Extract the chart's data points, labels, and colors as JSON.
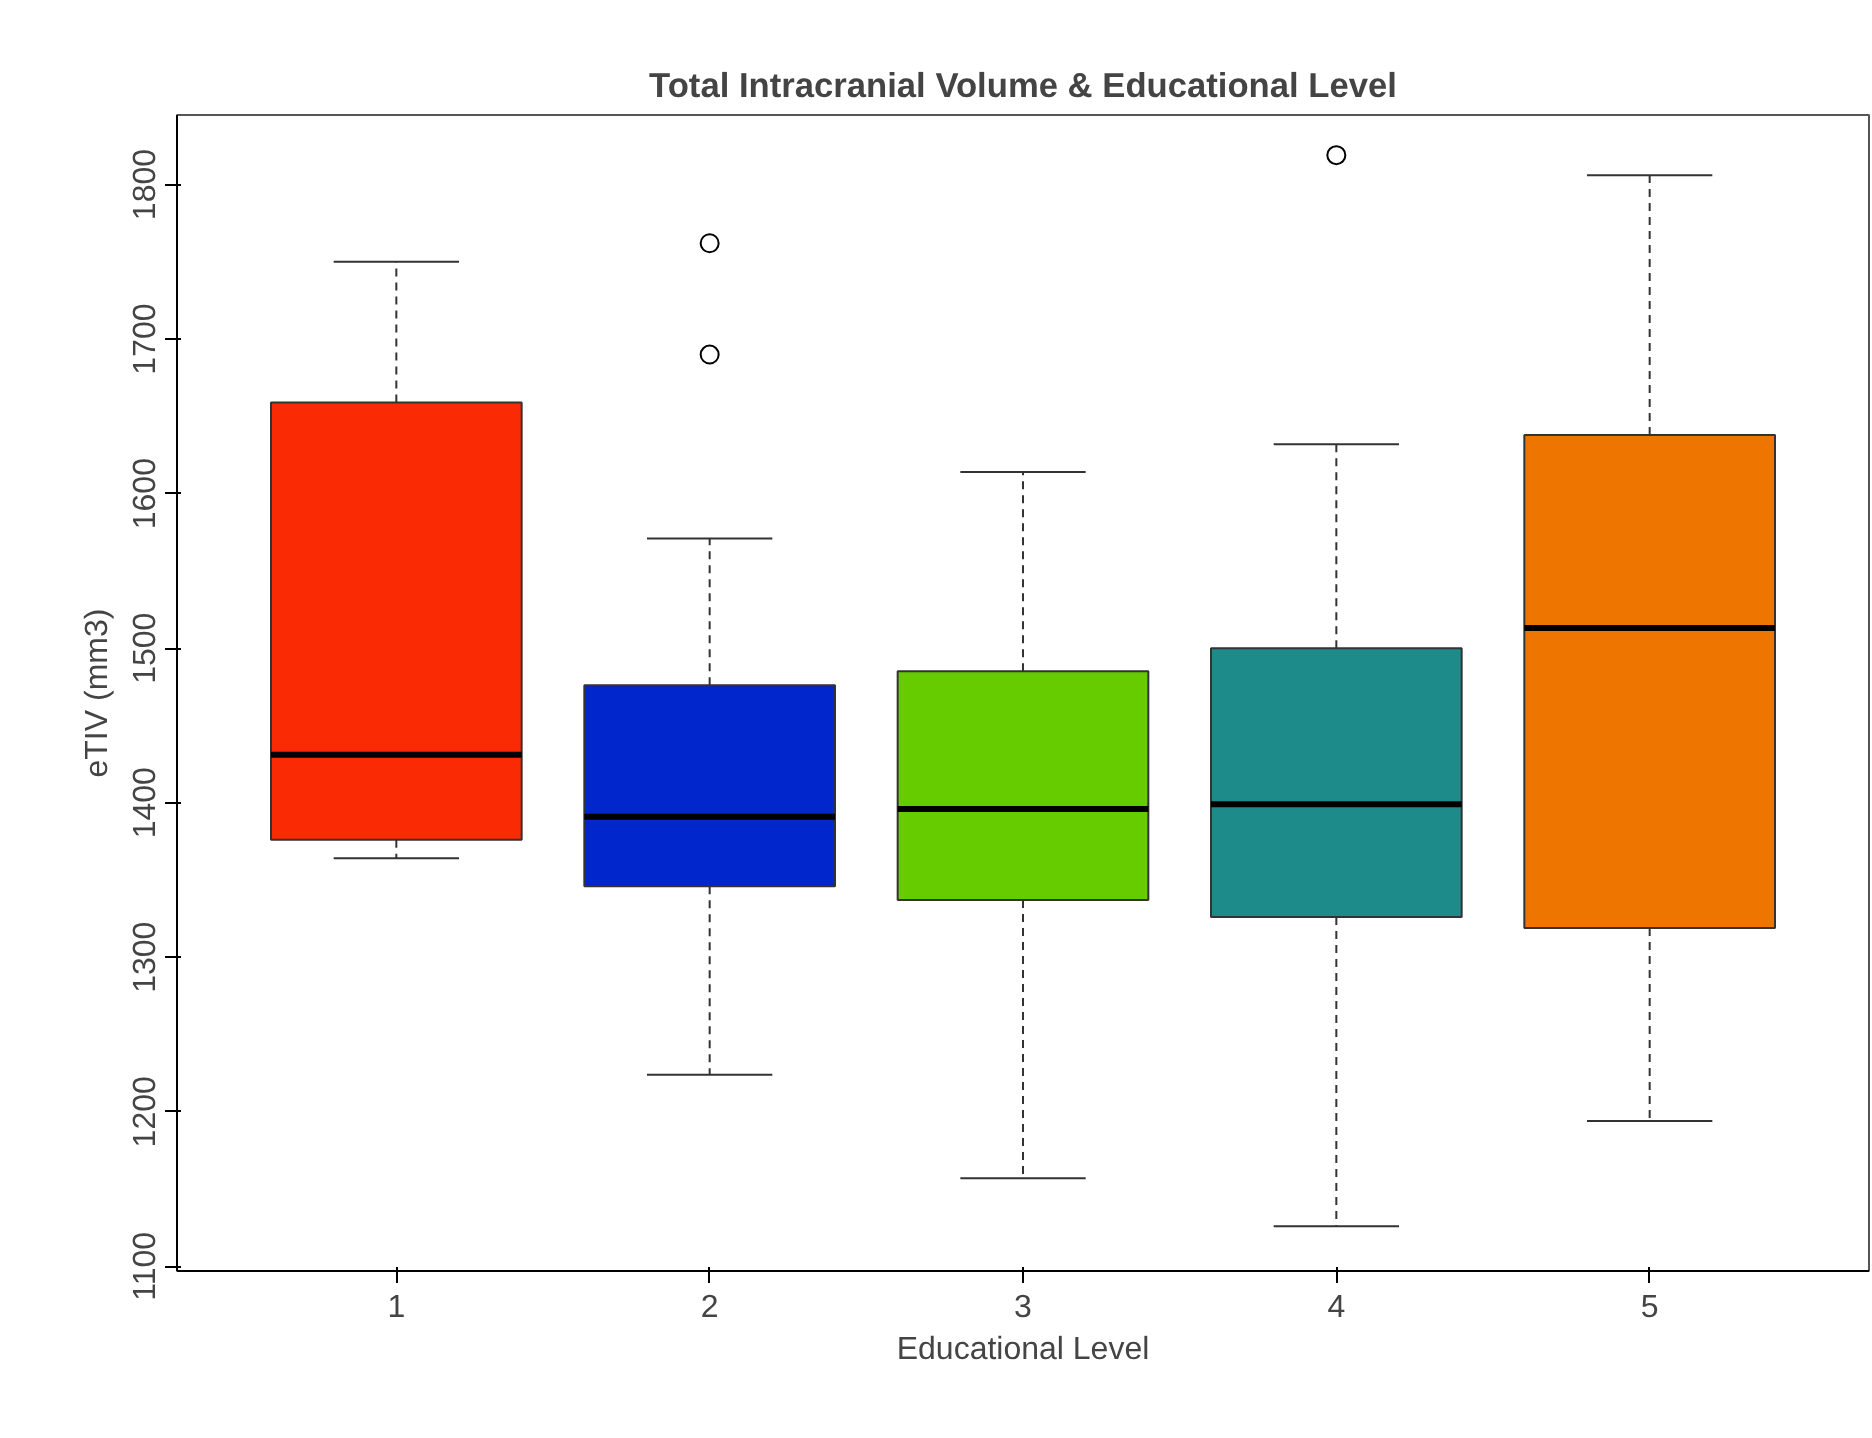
{
  "chart_data": {
    "type": "box",
    "title": "Total Intracranial Volume & Educational Level",
    "xlabel": "Educational Level",
    "ylabel": "eTIV (mm3)",
    "categories": [
      "1",
      "2",
      "3",
      "4",
      "5"
    ],
    "colors": [
      "#f92a04",
      "#0026cc",
      "#66cc00",
      "#1e8b8b",
      "#ee7600"
    ],
    "boxes": [
      {
        "low": 1364,
        "q1": 1376,
        "median": 1431,
        "q3": 1659,
        "high": 1750
      },
      {
        "low": 1224,
        "q1": 1346,
        "median": 1391,
        "q3": 1476,
        "high": 1571,
        "outliers": [
          1762,
          1690
        ]
      },
      {
        "low": 1157,
        "q1": 1337,
        "median": 1396,
        "q3": 1485,
        "high": 1614
      },
      {
        "low": 1126,
        "q1": 1326,
        "median": 1399,
        "q3": 1500,
        "high": 1632,
        "outliers": [
          1819
        ]
      },
      {
        "low": 1194,
        "q1": 1319,
        "median": 1513,
        "q3": 1638,
        "high": 1806
      }
    ],
    "ylim": [
      1097,
      1845
    ],
    "yticks": [
      1100,
      1200,
      1300,
      1400,
      1500,
      1600,
      1700,
      1800
    ],
    "grid": false
  }
}
